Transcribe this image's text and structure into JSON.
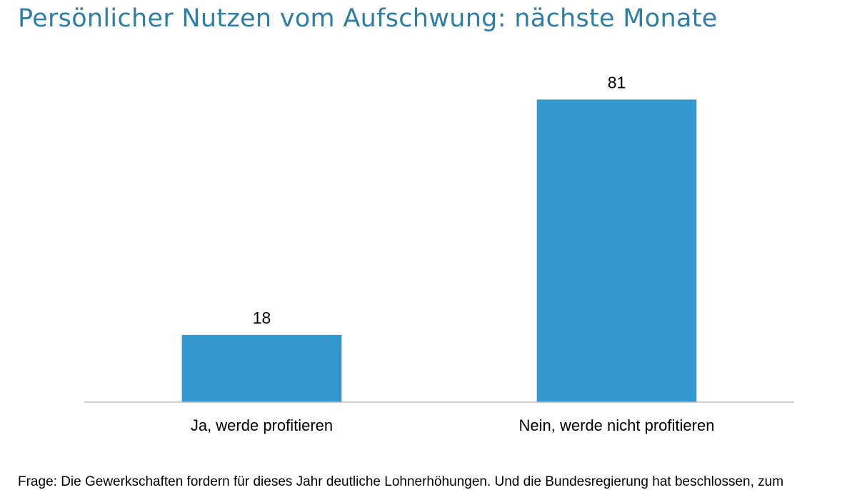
{
  "title": "Persönlicher Nutzen vom Aufschwung: nächste Monate",
  "chart_data": {
    "type": "bar",
    "title": "Persönlicher Nutzen vom Aufschwung: nächste Monate",
    "categories": [
      "Ja, werde profitieren",
      "Nein, werde nicht profitieren"
    ],
    "values": [
      18,
      81
    ],
    "data_labels": [
      "18",
      "81"
    ],
    "xlabel": "",
    "ylabel": "",
    "ylim": [
      0,
      100
    ],
    "grid": false,
    "legend": "none",
    "colors": {
      "bar": "#3399cc",
      "axis": "#bfbfbf",
      "title": "#2e7ea6"
    }
  },
  "footnote": "Frage: Die Gewerkschaften fordern für dieses Jahr deutliche Lohnerhöhungen. Und die Bundesregierung hat beschlossen, zum"
}
